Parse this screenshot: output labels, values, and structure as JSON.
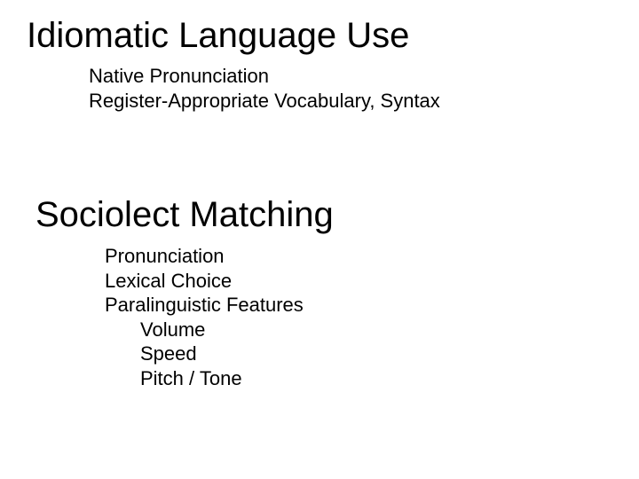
{
  "colors": {
    "background": "#ffffff",
    "text": "#000000"
  },
  "typography": {
    "heading_fontsize": 40,
    "sub_fontsize": 22,
    "font_family": "Arial"
  },
  "section1": {
    "heading": "Idiomatic Language Use",
    "items": [
      "Native Pronunciation",
      "Register-Appropriate Vocabulary, Syntax"
    ]
  },
  "section2": {
    "heading": "Sociolect Matching",
    "items": [
      {
        "text": "Pronunciation",
        "indent": 1
      },
      {
        "text": "Lexical Choice",
        "indent": 1
      },
      {
        "text": "Paralinguistic Features",
        "indent": 1
      },
      {
        "text": "Volume",
        "indent": 2
      },
      {
        "text": "Speed",
        "indent": 2
      },
      {
        "text": "Pitch / Tone",
        "indent": 2
      }
    ]
  }
}
